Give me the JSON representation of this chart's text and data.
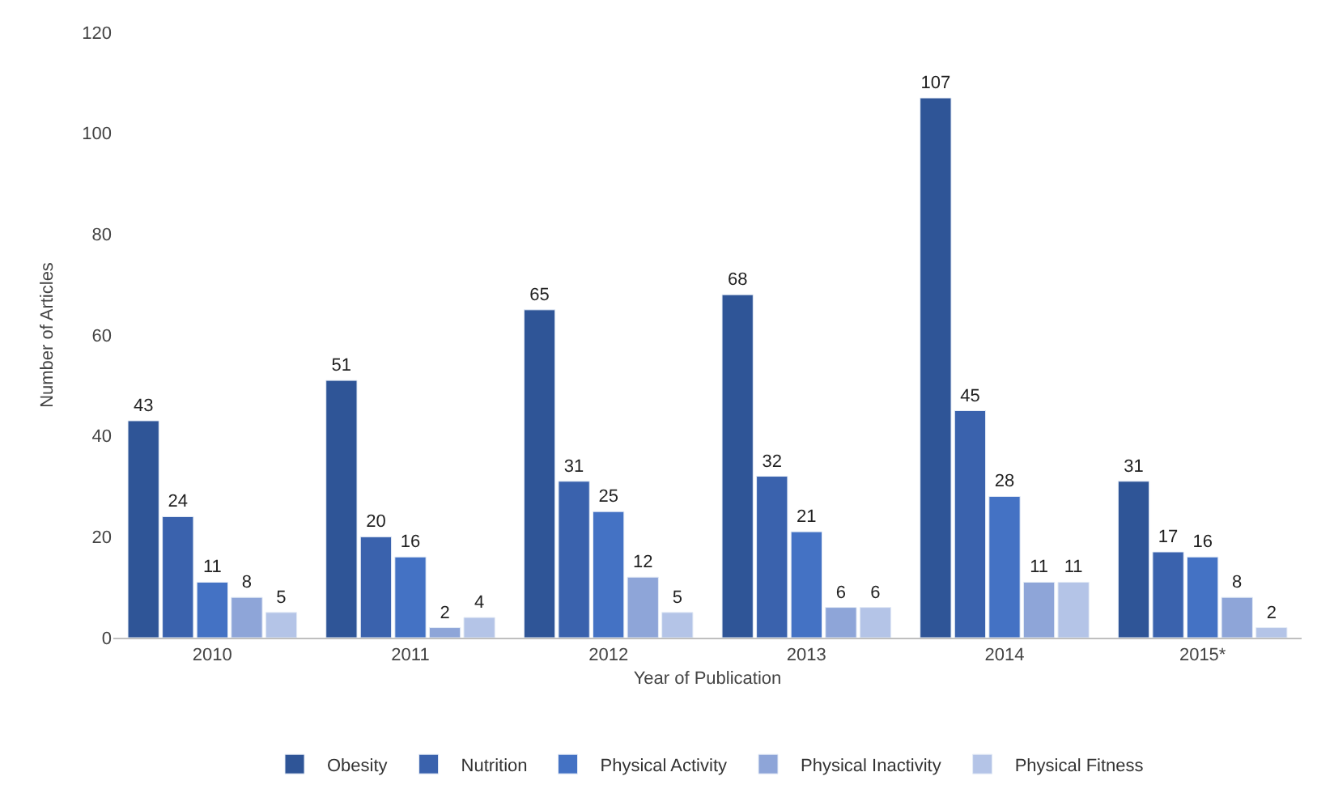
{
  "chart_data": {
    "type": "bar",
    "xlabel": "Year of Publication",
    "ylabel": "Number of Articles",
    "categories": [
      "2010",
      "2011",
      "2012",
      "2013",
      "2014",
      "2015*"
    ],
    "series": [
      {
        "name": "Obesity",
        "color": "#2f5597",
        "values": [
          43,
          51,
          65,
          68,
          107,
          31
        ]
      },
      {
        "name": "Nutrition",
        "color": "#3a62ad",
        "values": [
          24,
          20,
          31,
          32,
          45,
          17
        ]
      },
      {
        "name": "Physical Activity",
        "color": "#4472c4",
        "values": [
          11,
          16,
          25,
          21,
          28,
          16
        ]
      },
      {
        "name": "Physical Inactivity",
        "color": "#8ea5d8",
        "values": [
          8,
          2,
          12,
          6,
          11,
          8
        ]
      },
      {
        "name": "Physical Fitness",
        "color": "#b4c4e7",
        "values": [
          5,
          4,
          5,
          6,
          11,
          2
        ]
      }
    ],
    "ylim": [
      0,
      120
    ],
    "yticks": [
      0,
      20,
      40,
      60,
      80,
      100,
      120
    ],
    "data_labels": true,
    "legend": "bottom",
    "grid": false
  }
}
